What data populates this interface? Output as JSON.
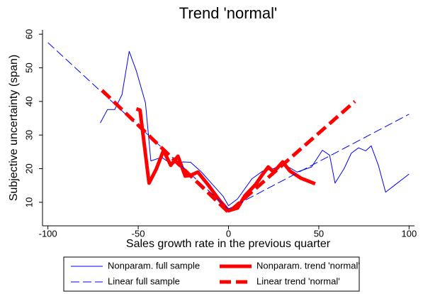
{
  "chart_data": {
    "type": "line",
    "title": "Trend 'normal'",
    "x_label": "Sales growth rate in the previous quarter",
    "y_label": "Subjective uncertainty (span)",
    "xlim": [
      -103,
      103
    ],
    "ylim": [
      3,
      61.3
    ],
    "xticks": [
      -100,
      -50,
      0,
      50,
      100
    ],
    "yticks": [
      10,
      20,
      30,
      40,
      50,
      60
    ],
    "grid": false,
    "series": [
      {
        "name": "Nonparam. full sample",
        "color": "#0000ff",
        "line_style": "solid",
        "linewidth": 1,
        "x": [
          -71,
          -67,
          -63,
          -59,
          -55,
          -51,
          -46,
          -43,
          -37,
          -32,
          -25,
          -21,
          -15,
          -9,
          -3,
          0,
          5,
          13,
          19,
          25,
          30,
          38,
          46,
          52,
          56,
          59,
          64,
          68,
          72,
          76,
          79,
          83,
          87,
          93,
          100
        ],
        "values": [
          33.6,
          37.6,
          37.6,
          42,
          54.9,
          49,
          39.6,
          22.3,
          23.4,
          21.5,
          22,
          21.9,
          19,
          15.4,
          11.8,
          9,
          11,
          17,
          19.3,
          20,
          21.5,
          19,
          20.5,
          25.5,
          24,
          15.7,
          20,
          24.6,
          26.2,
          25.3,
          26.8,
          21,
          13,
          15.5,
          18.4
        ]
      },
      {
        "name": "Nonparam. trend 'normal'",
        "color": "#ff0000",
        "line_style": "solid",
        "linewidth": 5,
        "x": [
          -51,
          -49,
          -44,
          -40,
          -36,
          -32,
          -28,
          -24,
          -21,
          -17,
          -11,
          -5,
          0,
          5,
          9,
          15,
          19,
          22,
          25,
          30,
          34,
          40,
          48
        ],
        "values": [
          37.8,
          37.4,
          15.7,
          19.9,
          25.4,
          21,
          23.7,
          17.8,
          18,
          19,
          15,
          10.6,
          7.5,
          8.3,
          11.9,
          15.3,
          18.4,
          20.5,
          19,
          22,
          19.3,
          17.2,
          15.5
        ]
      },
      {
        "name": "Linear full sample",
        "color": "#0000ff",
        "line_style": "dashed",
        "linewidth": 1,
        "x": [
          -100,
          0,
          100
        ],
        "values": [
          57.5,
          8,
          36.2
        ]
      },
      {
        "name": "Linear trend 'normal'",
        "color": "#ff0000",
        "line_style": "dashed",
        "linewidth": 5,
        "x": [
          -70,
          0,
          70
        ],
        "values": [
          43.3,
          7,
          40
        ]
      }
    ]
  }
}
